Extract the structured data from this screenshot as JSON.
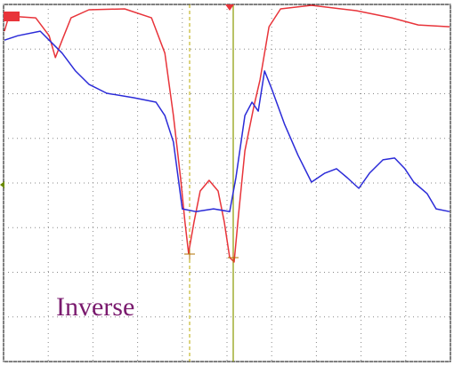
{
  "chart_data": {
    "type": "line",
    "annotation": "Inverse",
    "xlim": [
      0,
      10
    ],
    "ylim": [
      -4,
      4
    ],
    "xticks": [
      0,
      1,
      2,
      3,
      4,
      5,
      6,
      7,
      8,
      9,
      10
    ],
    "yticks": [
      -4,
      -3,
      -2,
      -1,
      0,
      1,
      2,
      3,
      4
    ],
    "grid": true,
    "series": [
      {
        "color": "#e8343a",
        "x": [
          0.02,
          0.12,
          0.72,
          1.02,
          1.16,
          1.31,
          1.51,
          1.91,
          2.71,
          3.31,
          3.61,
          3.8,
          3.96,
          4.06,
          4.14,
          4.26,
          4.4,
          4.6,
          4.8,
          4.94,
          5.06,
          5.16,
          5.26,
          5.4,
          5.6,
          5.74,
          5.84,
          5.94,
          6.2,
          6.89,
          7.89,
          8.69,
          9.28,
          9.98
        ],
        "values": [
          3.4,
          3.74,
          3.7,
          3.3,
          2.81,
          3.2,
          3.7,
          3.88,
          3.9,
          3.7,
          2.91,
          1.51,
          0.12,
          -0.88,
          -1.57,
          -0.88,
          -0.18,
          0.06,
          -0.18,
          -0.88,
          -1.67,
          -1.77,
          -0.68,
          0.72,
          1.71,
          2.31,
          2.91,
          3.5,
          3.9,
          3.98,
          3.86,
          3.7,
          3.54,
          3.5
        ]
      },
      {
        "color": "#2b2bd8",
        "x": [
          0.02,
          0.32,
          0.82,
          1.02,
          1.31,
          1.61,
          1.91,
          2.31,
          2.91,
          3.41,
          3.61,
          3.8,
          4.0,
          4.3,
          4.7,
          5.06,
          5.2,
          5.4,
          5.56,
          5.7,
          5.84,
          6.0,
          6.29,
          6.59,
          6.89,
          7.19,
          7.45,
          7.69,
          7.95,
          8.19,
          8.49,
          8.75,
          8.98,
          9.18,
          9.48,
          9.68,
          9.98
        ],
        "values": [
          3.2,
          3.3,
          3.4,
          3.2,
          2.91,
          2.51,
          2.21,
          2.01,
          1.91,
          1.81,
          1.51,
          0.92,
          -0.58,
          -0.64,
          -0.58,
          -0.64,
          0.12,
          1.51,
          1.81,
          1.61,
          2.51,
          2.11,
          1.31,
          0.62,
          0.02,
          0.22,
          0.32,
          0.12,
          -0.12,
          0.22,
          0.52,
          0.56,
          0.32,
          0.02,
          -0.24,
          -0.58,
          -0.64
        ]
      }
    ]
  }
}
